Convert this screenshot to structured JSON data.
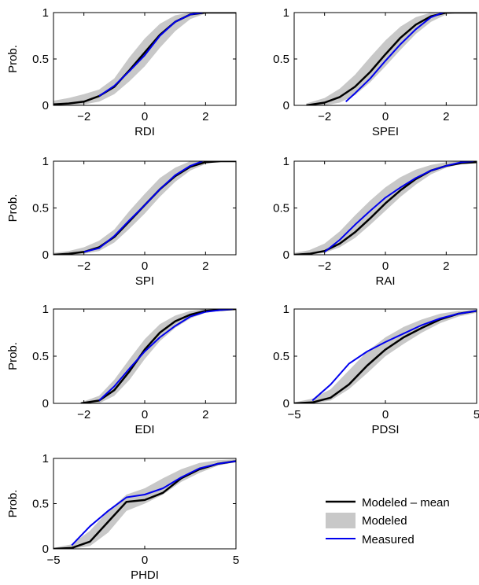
{
  "colors": {
    "mean": "#000000",
    "band": "#c8c8c8",
    "measured": "#0000ee"
  },
  "legend": {
    "placement": "bottom-right",
    "items": [
      {
        "label": "Modeled – mean",
        "key": "mean",
        "style": "line"
      },
      {
        "label": "Modeled",
        "key": "band",
        "style": "patch"
      },
      {
        "label": "Measured",
        "key": "measured",
        "style": "line"
      }
    ]
  },
  "chart_data": [
    {
      "type": "line",
      "xlabel": "RDI",
      "ylabel": "Prob.",
      "xlim": [
        -3,
        3
      ],
      "ylim": [
        0,
        1
      ],
      "xticks": [
        -2,
        0,
        2
      ],
      "xtick_labels": [
        "−2",
        "0",
        "2"
      ],
      "yticks": [
        0,
        0.5,
        1
      ],
      "ytick_labels": [
        "0",
        "0.5",
        "1"
      ],
      "series": [
        {
          "key": "band",
          "x": [
            -3,
            -2.5,
            -2,
            -1.5,
            -1,
            -0.5,
            0,
            0.5,
            1,
            1.5,
            2,
            2.5,
            3
          ],
          "lower": [
            0,
            0,
            0.01,
            0.04,
            0.12,
            0.26,
            0.42,
            0.62,
            0.8,
            0.93,
            0.99,
            1,
            1
          ],
          "upper": [
            0.05,
            0.08,
            0.12,
            0.17,
            0.29,
            0.52,
            0.72,
            0.88,
            0.97,
            1,
            1,
            1,
            1
          ]
        },
        {
          "key": "mean",
          "x": [
            -3,
            -2.5,
            -2,
            -1.5,
            -1,
            -0.5,
            0,
            0.5,
            1,
            1.5,
            2,
            2.5,
            3
          ],
          "y": [
            0.01,
            0.02,
            0.04,
            0.1,
            0.2,
            0.38,
            0.57,
            0.76,
            0.9,
            0.98,
            1,
            1,
            1
          ]
        },
        {
          "key": "measured",
          "x": [
            -1.5,
            -1,
            -0.5,
            0,
            0.5,
            1,
            1.5,
            1.9
          ],
          "y": [
            0.1,
            0.21,
            0.37,
            0.54,
            0.75,
            0.9,
            0.98,
            1
          ]
        }
      ]
    },
    {
      "type": "line",
      "xlabel": "SPEI",
      "ylabel": "",
      "xlim": [
        -3,
        3
      ],
      "ylim": [
        0,
        1
      ],
      "xticks": [
        -2,
        0,
        2
      ],
      "xtick_labels": [
        "−2",
        "0",
        "2"
      ],
      "yticks": [
        0,
        0.5,
        1
      ],
      "ytick_labels": [
        "0",
        "0.5",
        "1"
      ],
      "series": [
        {
          "key": "band",
          "x": [
            -2.6,
            -2,
            -1.5,
            -1,
            -0.5,
            0,
            0.5,
            1,
            1.5,
            2,
            2.5,
            3
          ],
          "lower": [
            0,
            0,
            0.03,
            0.11,
            0.25,
            0.42,
            0.6,
            0.77,
            0.9,
            0.98,
            1,
            1
          ],
          "upper": [
            0.02,
            0.08,
            0.18,
            0.33,
            0.52,
            0.7,
            0.85,
            0.95,
            1,
            1,
            1,
            1
          ]
        },
        {
          "key": "mean",
          "x": [
            -2.6,
            -2,
            -1.5,
            -1,
            -0.5,
            0,
            0.5,
            1,
            1.5,
            2,
            2.5,
            3
          ],
          "y": [
            0,
            0.03,
            0.09,
            0.2,
            0.36,
            0.55,
            0.73,
            0.87,
            0.96,
            1,
            1,
            1
          ]
        },
        {
          "key": "measured",
          "x": [
            -1.3,
            -1,
            -0.5,
            0,
            0.5,
            1,
            1.5,
            1.9
          ],
          "y": [
            0.04,
            0.13,
            0.29,
            0.48,
            0.66,
            0.82,
            0.95,
            1
          ]
        }
      ]
    },
    {
      "type": "line",
      "xlabel": "SPI",
      "ylabel": "Prob.",
      "xlim": [
        -3,
        3
      ],
      "ylim": [
        0,
        1
      ],
      "xticks": [
        -2,
        0,
        2
      ],
      "xtick_labels": [
        "−2",
        "0",
        "2"
      ],
      "yticks": [
        0,
        0.5,
        1
      ],
      "ytick_labels": [
        "0",
        "0.5",
        "1"
      ],
      "series": [
        {
          "key": "band",
          "x": [
            -3,
            -2.5,
            -2,
            -1.5,
            -1,
            -0.5,
            0,
            0.5,
            1,
            1.5,
            2,
            2.5,
            3
          ],
          "lower": [
            0,
            0,
            0.01,
            0.04,
            0.13,
            0.28,
            0.44,
            0.62,
            0.78,
            0.9,
            0.97,
            1,
            1
          ],
          "upper": [
            0.02,
            0.04,
            0.08,
            0.15,
            0.27,
            0.47,
            0.65,
            0.82,
            0.93,
            1,
            1,
            1,
            1
          ]
        },
        {
          "key": "mean",
          "x": [
            -3,
            -2.5,
            -2,
            -1.5,
            -1,
            -0.5,
            0,
            0.5,
            1,
            1.5,
            2,
            2.5,
            3
          ],
          "y": [
            0,
            0.01,
            0.03,
            0.08,
            0.19,
            0.36,
            0.53,
            0.7,
            0.84,
            0.94,
            0.99,
            1,
            1
          ]
        },
        {
          "key": "measured",
          "x": [
            -2,
            -1.5,
            -1,
            -0.5,
            0,
            0.5,
            1,
            1.5,
            1.9
          ],
          "y": [
            0.03,
            0.07,
            0.2,
            0.37,
            0.53,
            0.7,
            0.85,
            0.95,
            1
          ]
        }
      ]
    },
    {
      "type": "line",
      "xlabel": "RAI",
      "ylabel": "",
      "xlim": [
        -3,
        3
      ],
      "ylim": [
        0,
        1
      ],
      "xticks": [
        -2,
        0,
        2
      ],
      "xtick_labels": [
        "−2",
        "0",
        "2"
      ],
      "yticks": [
        0,
        0.5,
        1
      ],
      "ytick_labels": [
        "0",
        "0.5",
        "1"
      ],
      "series": [
        {
          "key": "band",
          "x": [
            -3,
            -2.5,
            -2,
            -1.5,
            -1,
            -0.5,
            0,
            0.5,
            1,
            1.5,
            2,
            2.5,
            3
          ],
          "lower": [
            0,
            0,
            0.02,
            0.08,
            0.18,
            0.32,
            0.47,
            0.62,
            0.75,
            0.86,
            0.93,
            0.97,
            0.98
          ],
          "upper": [
            0.02,
            0.05,
            0.12,
            0.25,
            0.42,
            0.58,
            0.72,
            0.83,
            0.91,
            0.96,
            0.99,
            1,
            1
          ]
        },
        {
          "key": "mean",
          "x": [
            -3,
            -2.5,
            -2,
            -1.5,
            -1,
            -0.5,
            0,
            0.5,
            1,
            1.5,
            2,
            2.5,
            3
          ],
          "y": [
            0,
            0.01,
            0.04,
            0.12,
            0.24,
            0.39,
            0.55,
            0.69,
            0.81,
            0.9,
            0.95,
            0.98,
            0.99
          ]
        },
        {
          "key": "measured",
          "x": [
            -2,
            -1.5,
            -1,
            -0.5,
            0,
            0.5,
            1,
            1.5,
            2,
            2.5,
            2.9
          ],
          "y": [
            0.03,
            0.16,
            0.32,
            0.47,
            0.61,
            0.72,
            0.82,
            0.9,
            0.95,
            0.99,
            1
          ]
        }
      ]
    },
    {
      "type": "line",
      "xlabel": "EDI",
      "ylabel": "Prob.",
      "xlim": [
        -3,
        3
      ],
      "ylim": [
        0,
        1
      ],
      "xticks": [
        -2,
        0,
        2
      ],
      "xtick_labels": [
        "−2",
        "0",
        "2"
      ],
      "yticks": [
        0,
        0.5,
        1
      ],
      "ytick_labels": [
        "0",
        "0.5",
        "1"
      ],
      "series": [
        {
          "key": "band",
          "x": [
            -2.1,
            -1.5,
            -1,
            -0.5,
            0,
            0.5,
            1,
            1.5,
            2,
            2.5,
            3
          ],
          "lower": [
            0,
            0,
            0.08,
            0.25,
            0.47,
            0.66,
            0.8,
            0.9,
            0.96,
            0.98,
            0.99
          ],
          "upper": [
            0.01,
            0.08,
            0.25,
            0.47,
            0.68,
            0.84,
            0.93,
            0.98,
            1,
            1,
            1
          ]
        },
        {
          "key": "mean",
          "x": [
            -2.1,
            -1.5,
            -1,
            -0.5,
            0,
            0.5,
            1,
            1.5,
            2,
            2.5,
            3
          ],
          "y": [
            0,
            0.03,
            0.14,
            0.34,
            0.57,
            0.75,
            0.87,
            0.94,
            0.98,
            0.99,
            1
          ]
        },
        {
          "key": "measured",
          "x": [
            -1.5,
            -1,
            -0.5,
            0,
            0.5,
            1,
            1.5,
            2,
            2.5,
            2.9
          ],
          "y": [
            0.03,
            0.18,
            0.37,
            0.55,
            0.7,
            0.82,
            0.92,
            0.97,
            0.99,
            1
          ]
        }
      ]
    },
    {
      "type": "line",
      "xlabel": "PDSI",
      "ylabel": "",
      "xlim": [
        -5,
        5
      ],
      "ylim": [
        0,
        1
      ],
      "xticks": [
        -5,
        0,
        5
      ],
      "xtick_labels": [
        "−5",
        "0",
        "5"
      ],
      "yticks": [
        0,
        0.5,
        1
      ],
      "ytick_labels": [
        "0",
        "0.5",
        "1"
      ],
      "series": [
        {
          "key": "band",
          "x": [
            -5,
            -4,
            -3,
            -2,
            -1,
            0,
            1,
            2,
            3,
            4,
            5
          ],
          "lower": [
            0,
            0,
            0.03,
            0.15,
            0.32,
            0.5,
            0.63,
            0.75,
            0.85,
            0.92,
            0.96
          ],
          "upper": [
            0.01,
            0.05,
            0.15,
            0.35,
            0.55,
            0.7,
            0.81,
            0.89,
            0.95,
            0.98,
            0.99
          ]
        },
        {
          "key": "mean",
          "x": [
            -5,
            -4,
            -3,
            -2,
            -1,
            0,
            1,
            2,
            3,
            4,
            5
          ],
          "y": [
            0,
            0.01,
            0.06,
            0.2,
            0.4,
            0.57,
            0.7,
            0.8,
            0.89,
            0.95,
            0.98
          ]
        },
        {
          "key": "measured",
          "x": [
            -4,
            -3,
            -2,
            -1,
            0,
            1,
            2,
            3,
            4,
            5
          ],
          "y": [
            0.03,
            0.2,
            0.42,
            0.55,
            0.65,
            0.74,
            0.83,
            0.9,
            0.95,
            0.98
          ]
        }
      ]
    },
    {
      "type": "line",
      "xlabel": "PHDI",
      "ylabel": "Prob.",
      "xlim": [
        -5,
        5
      ],
      "ylim": [
        0,
        1
      ],
      "xticks": [
        -5,
        0,
        5
      ],
      "xtick_labels": [
        "−5",
        "0",
        "5"
      ],
      "yticks": [
        0,
        0.5,
        1
      ],
      "ytick_labels": [
        "0",
        "0.5",
        "1"
      ],
      "series": [
        {
          "key": "band",
          "x": [
            -5,
            -4,
            -3,
            -2,
            -1,
            0,
            1,
            2,
            3,
            4,
            5
          ],
          "lower": [
            0,
            0,
            0.03,
            0.18,
            0.42,
            0.5,
            0.6,
            0.74,
            0.84,
            0.92,
            0.96
          ],
          "upper": [
            0.01,
            0.05,
            0.2,
            0.42,
            0.6,
            0.67,
            0.78,
            0.88,
            0.95,
            0.98,
            0.99
          ]
        },
        {
          "key": "mean",
          "x": [
            -5,
            -4,
            -3,
            -2,
            -1,
            0,
            1,
            2,
            3,
            4,
            5
          ],
          "y": [
            0,
            0.01,
            0.08,
            0.3,
            0.52,
            0.54,
            0.62,
            0.78,
            0.88,
            0.94,
            0.97
          ]
        },
        {
          "key": "measured",
          "x": [
            -4,
            -3,
            -2,
            -1,
            0,
            1,
            2,
            3,
            4,
            5
          ],
          "y": [
            0.04,
            0.25,
            0.42,
            0.57,
            0.6,
            0.67,
            0.79,
            0.89,
            0.94,
            0.97
          ]
        }
      ]
    }
  ]
}
